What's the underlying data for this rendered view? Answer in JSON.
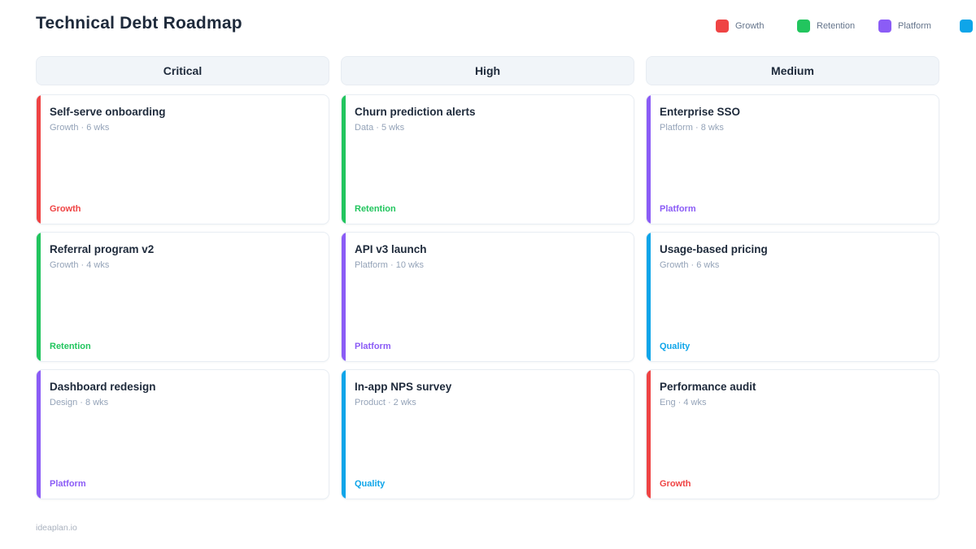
{
  "page": {
    "title": "Technical Debt Roadmap",
    "footer": "ideaplan.io"
  },
  "colors": {
    "growth": "#ef4444",
    "retention": "#22c55e",
    "platform": "#8b5cf6",
    "quality": "#0ea5e9"
  },
  "legend": {
    "items": [
      {
        "label": "Growth",
        "color_key": "growth"
      },
      {
        "label": "Retention",
        "color_key": "retention"
      },
      {
        "label": "Platform",
        "color_key": "platform"
      },
      {
        "label": "",
        "color_key": "quality"
      }
    ]
  },
  "board": {
    "columns": [
      {
        "header": "Critical",
        "cards": [
          {
            "title": "Self-serve onboarding",
            "meta": "Growth · 6 wks",
            "tag": "Growth",
            "color_key": "growth"
          },
          {
            "title": "Referral program v2",
            "meta": "Growth · 4 wks",
            "tag": "Retention",
            "color_key": "retention"
          },
          {
            "title": "Dashboard redesign",
            "meta": "Design · 8 wks",
            "tag": "Platform",
            "color_key": "platform"
          }
        ]
      },
      {
        "header": "High",
        "cards": [
          {
            "title": "Churn prediction alerts",
            "meta": "Data · 5 wks",
            "tag": "Retention",
            "color_key": "retention"
          },
          {
            "title": "API v3 launch",
            "meta": "Platform · 10 wks",
            "tag": "Platform",
            "color_key": "platform"
          },
          {
            "title": "In-app NPS survey",
            "meta": "Product · 2 wks",
            "tag": "Quality",
            "color_key": "quality"
          }
        ]
      },
      {
        "header": "Medium",
        "cards": [
          {
            "title": "Enterprise SSO",
            "meta": "Platform · 8 wks",
            "tag": "Platform",
            "color_key": "platform"
          },
          {
            "title": "Usage-based pricing",
            "meta": "Growth · 6 wks",
            "tag": "Quality",
            "color_key": "quality"
          },
          {
            "title": "Performance audit",
            "meta": "Eng · 4 wks",
            "tag": "Growth",
            "color_key": "growth"
          }
        ]
      }
    ]
  }
}
